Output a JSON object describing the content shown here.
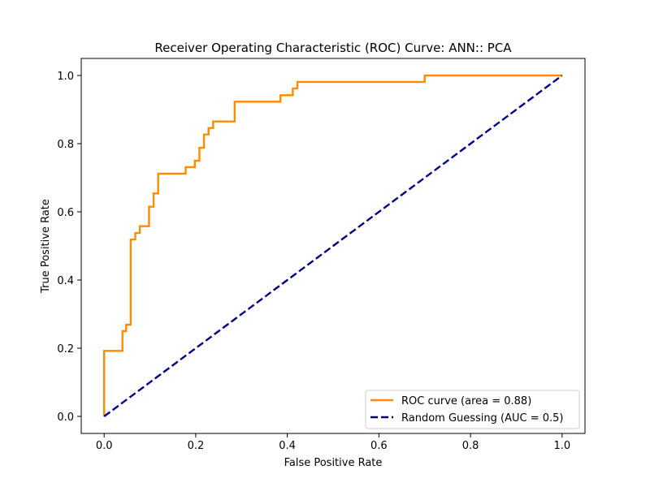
{
  "chart_data": {
    "type": "line",
    "title": "Receiver Operating Characteristic (ROC) Curve: ANN:: PCA",
    "xlabel": "False Positive Rate",
    "ylabel": "True Positive Rate",
    "xlim": [
      -0.05,
      1.05
    ],
    "ylim": [
      -0.05,
      1.05
    ],
    "xticks": [
      0.0,
      0.2,
      0.4,
      0.6,
      0.8,
      1.0
    ],
    "yticks": [
      0.0,
      0.2,
      0.4,
      0.6,
      0.8,
      1.0
    ],
    "xtick_labels": [
      "0.0",
      "0.2",
      "0.4",
      "0.6",
      "0.8",
      "1.0"
    ],
    "ytick_labels": [
      "0.0",
      "0.2",
      "0.4",
      "0.6",
      "0.8",
      "1.0"
    ],
    "grid": false,
    "legend_position": "lower-right",
    "series": [
      {
        "name": "ROC curve (area = 0.88)",
        "color": "#ff8c00",
        "style": "solid",
        "x": [
          0.0,
          0.0,
          0.04,
          0.04,
          0.048,
          0.048,
          0.058,
          0.058,
          0.068,
          0.068,
          0.078,
          0.078,
          0.098,
          0.098,
          0.108,
          0.108,
          0.118,
          0.118,
          0.178,
          0.178,
          0.198,
          0.198,
          0.208,
          0.208,
          0.218,
          0.218,
          0.228,
          0.228,
          0.238,
          0.238,
          0.285,
          0.285,
          0.385,
          0.385,
          0.412,
          0.412,
          0.422,
          0.422,
          0.7,
          0.7,
          1.0
        ],
        "y": [
          0.0,
          0.192,
          0.192,
          0.25,
          0.25,
          0.269,
          0.269,
          0.519,
          0.519,
          0.538,
          0.538,
          0.558,
          0.558,
          0.615,
          0.615,
          0.654,
          0.654,
          0.712,
          0.712,
          0.731,
          0.731,
          0.75,
          0.75,
          0.788,
          0.788,
          0.827,
          0.827,
          0.846,
          0.846,
          0.865,
          0.865,
          0.923,
          0.923,
          0.942,
          0.942,
          0.962,
          0.962,
          0.981,
          0.981,
          1.0,
          1.0
        ]
      },
      {
        "name": "Random Guessing (AUC = 0.5)",
        "color": "#000080",
        "style": "dashed",
        "x": [
          0.0,
          1.0
        ],
        "y": [
          0.0,
          1.0
        ]
      }
    ]
  }
}
